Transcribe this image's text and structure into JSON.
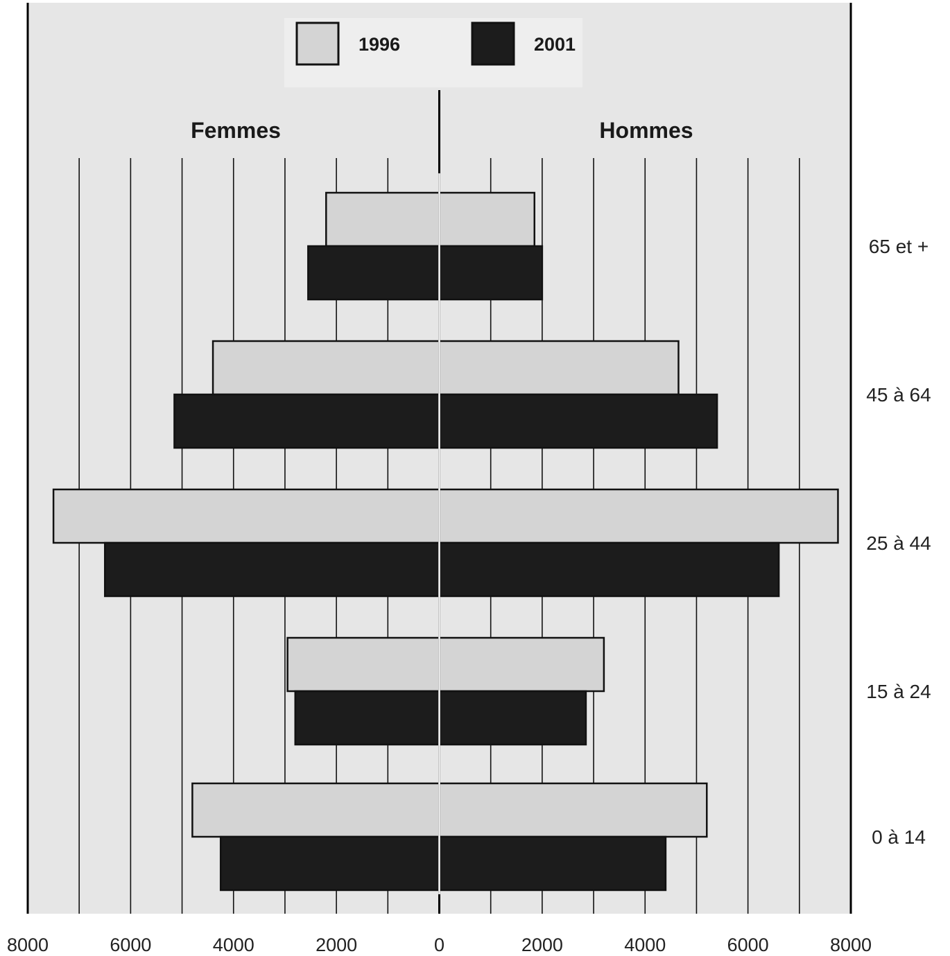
{
  "chart_data": {
    "type": "bar",
    "orientation": "horizontal",
    "subtype": "population-pyramid",
    "categories": [
      "65 et +",
      "45 à 64",
      "25 à 44",
      "15 à 24",
      "0 à 14"
    ],
    "left_label": "Femmes",
    "right_label": "Hommes",
    "series": [
      {
        "name": "1996",
        "color": "#d4d4d4",
        "femmes": [
          2200,
          4400,
          7500,
          2950,
          4800
        ],
        "hommes": [
          1850,
          4650,
          7750,
          3200,
          5200
        ]
      },
      {
        "name": "2001",
        "color": "#1c1c1c",
        "femmes": [
          2550,
          5150,
          6500,
          2800,
          4250
        ],
        "hommes": [
          2000,
          5400,
          6600,
          2850,
          4400
        ]
      }
    ],
    "xlim": [
      -8000,
      8000
    ],
    "x_ticks": [
      -8000,
      -6000,
      -4000,
      -2000,
      0,
      2000,
      4000,
      6000,
      8000
    ],
    "x_tick_labels": [
      "8000",
      "6000",
      "4000",
      "2000",
      "0",
      "2000",
      "4000",
      "6000",
      "8000"
    ],
    "grid_step": 1000,
    "grid": true,
    "legend_position": "top-center",
    "colors": {
      "background": "#e6e6e6",
      "grid": "#111111",
      "bar_1996": "#d4d4d4",
      "bar_2001": "#1c1c1c"
    }
  }
}
